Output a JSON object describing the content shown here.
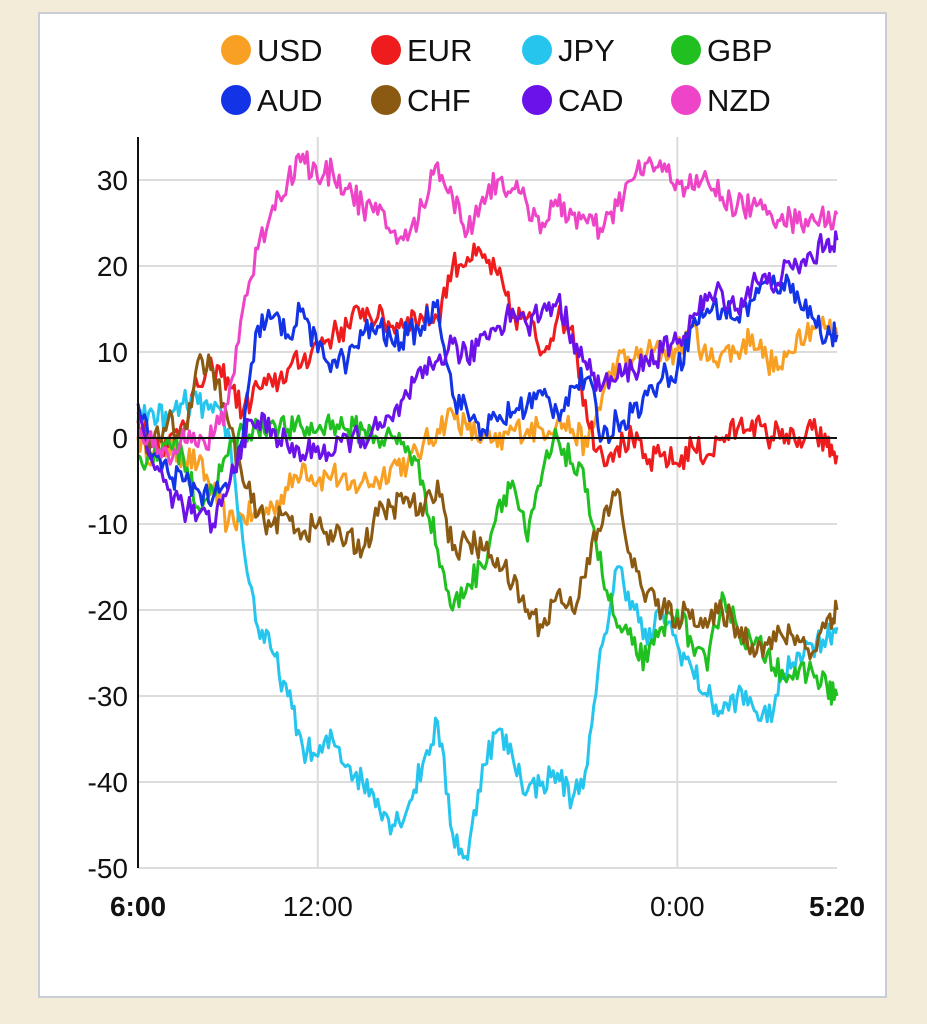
{
  "chart_data": {
    "type": "line",
    "title": "",
    "xlabel": "",
    "ylabel": "",
    "ylim": [
      -50,
      35
    ],
    "yticks": [
      30,
      20,
      10,
      0,
      -10,
      -20,
      -30,
      -40,
      -50
    ],
    "x_tick_labels": [
      {
        "label": "6:00",
        "t": 0,
        "bold": true
      },
      {
        "label": "12:00",
        "t": 6,
        "bold": false
      },
      {
        "label": "0:00",
        "t": 18,
        "bold": false
      },
      {
        "label": "5:20",
        "t": 23.33,
        "bold": true
      }
    ],
    "xlim": [
      0,
      23.33
    ],
    "grid": true,
    "legend_position": "top",
    "series": [
      {
        "name": "USD",
        "color": "#f7a024",
        "x": [
          0,
          0.5,
          1,
          1.5,
          2,
          2.5,
          3,
          3.5,
          4,
          4.5,
          5,
          5.5,
          6,
          6.5,
          7,
          7.5,
          8,
          8.5,
          9,
          9.5,
          10,
          10.5,
          11,
          11.5,
          12,
          12.5,
          13,
          13.5,
          14,
          14.5,
          15,
          15.5,
          16,
          16.5,
          17,
          17.5,
          18,
          18.5,
          19,
          19.5,
          20,
          20.5,
          21,
          21.5,
          22,
          22.5,
          23,
          23.33
        ],
        "y": [
          0,
          -2,
          -1,
          -2,
          -3,
          -6,
          -10,
          -9,
          -9,
          -8,
          -6,
          -3,
          -5,
          -4,
          -6,
          -5,
          -5,
          -3,
          -3,
          -1,
          1,
          3,
          1,
          0,
          -1,
          1,
          1,
          1,
          2,
          1,
          -1,
          5,
          9,
          9,
          10,
          10,
          10,
          13,
          9,
          10,
          10,
          12,
          9,
          8,
          12,
          13,
          13,
          12
        ]
      },
      {
        "name": "EUR",
        "color": "#ee1c1c",
        "x": [
          0,
          0.5,
          1,
          1.5,
          2,
          2.5,
          3,
          3.5,
          4,
          4.5,
          5,
          5.5,
          6,
          6.5,
          7,
          7.5,
          8,
          8.5,
          9,
          9.5,
          10,
          10.5,
          11,
          11.5,
          12,
          12.5,
          13,
          13.5,
          14,
          14.5,
          15,
          15.5,
          16,
          16.5,
          17,
          17.5,
          18,
          18.5,
          19,
          19.5,
          20,
          20.5,
          21,
          21.5,
          22,
          22.5,
          23,
          23.33
        ],
        "y": [
          2,
          0,
          -1,
          2,
          6,
          8,
          7,
          3,
          6,
          6,
          8,
          9,
          11,
          12,
          13,
          15,
          14,
          13,
          14,
          14,
          14,
          20,
          21,
          21,
          19,
          14,
          14,
          10,
          14,
          13,
          2,
          -2,
          -1,
          0,
          -3,
          -2,
          -3,
          -1,
          -2,
          0,
          1,
          2,
          0,
          1,
          -1,
          1,
          -1,
          -2
        ]
      },
      {
        "name": "JPY",
        "color": "#25c5ee",
        "x": [
          0,
          0.5,
          1,
          1.5,
          2,
          2.5,
          3,
          3.5,
          4,
          4.5,
          5,
          5.5,
          6,
          6.5,
          7,
          7.5,
          8,
          8.5,
          9,
          9.5,
          10,
          10.5,
          11,
          11.5,
          12,
          12.5,
          13,
          13.5,
          14,
          14.5,
          15,
          15.5,
          16,
          16.5,
          17,
          17.5,
          18,
          18.5,
          19,
          19.5,
          20,
          20.5,
          21,
          21.5,
          22,
          22.5,
          23,
          23.33
        ],
        "y": [
          2,
          3,
          2,
          4,
          4,
          3,
          1,
          -12,
          -22,
          -25,
          -30,
          -36,
          -37,
          -35,
          -38,
          -40,
          -42,
          -45,
          -43,
          -38,
          -33,
          -46,
          -49,
          -38,
          -34,
          -37,
          -41,
          -40,
          -39,
          -42,
          -38,
          -24,
          -15,
          -19,
          -24,
          -20,
          -24,
          -27,
          -30,
          -32,
          -30,
          -31,
          -33,
          -28,
          -25,
          -24,
          -23,
          -22
        ]
      },
      {
        "name": "GBP",
        "color": "#20c020",
        "x": [
          0,
          0.5,
          1,
          1.5,
          2,
          2.5,
          3,
          3.5,
          4,
          4.5,
          5,
          5.5,
          6,
          6.5,
          7,
          7.5,
          8,
          8.5,
          9,
          9.5,
          10,
          10.5,
          11,
          11.5,
          12,
          12.5,
          13,
          13.5,
          14,
          14.5,
          15,
          15.5,
          16,
          16.5,
          17,
          17.5,
          18,
          18.5,
          19,
          19.5,
          20,
          20.5,
          21,
          21.5,
          22,
          22.5,
          23,
          23.33
        ],
        "y": [
          -2,
          -3,
          0,
          -2,
          -8,
          -6,
          -2,
          1,
          1,
          2,
          1,
          1,
          1,
          2,
          1,
          1,
          0,
          0,
          -1,
          -5,
          -13,
          -20,
          -17,
          -15,
          -8,
          -5,
          -12,
          -4,
          0,
          -3,
          -6,
          -16,
          -22,
          -24,
          -26,
          -22,
          -20,
          -24,
          -27,
          -18,
          -22,
          -24,
          -25,
          -27,
          -28,
          -27,
          -29,
          -30
        ]
      },
      {
        "name": "AUD",
        "color": "#1233e6",
        "x": [
          0,
          0.5,
          1,
          1.5,
          2,
          2.5,
          3,
          3.5,
          4,
          4.5,
          5,
          5.5,
          6,
          6.5,
          7,
          7.5,
          8,
          8.5,
          9,
          9.5,
          10,
          10.5,
          11,
          11.5,
          12,
          12.5,
          13,
          13.5,
          14,
          14.5,
          15,
          15.5,
          16,
          16.5,
          17,
          17.5,
          18,
          18.5,
          19,
          19.5,
          20,
          20.5,
          21,
          21.5,
          22,
          22.5,
          23,
          23.33
        ],
        "y": [
          4,
          -2,
          -4,
          -5,
          -6,
          -7,
          -6,
          0,
          13,
          14,
          12,
          15,
          10,
          9,
          9,
          12,
          13,
          11,
          12,
          13,
          16,
          5,
          3,
          1,
          2,
          3,
          4,
          5,
          3,
          6,
          7,
          0,
          2,
          3,
          5,
          7,
          8,
          13,
          15,
          15,
          14,
          16,
          18,
          18,
          17,
          14,
          12,
          12
        ]
      },
      {
        "name": "CHF",
        "color": "#8b5a12",
        "x": [
          0,
          0.5,
          1,
          1.5,
          2,
          2.5,
          3,
          3.5,
          4,
          4.5,
          5,
          5.5,
          6,
          6.5,
          7,
          7.5,
          8,
          8.5,
          9,
          9.5,
          10,
          10.5,
          11,
          11.5,
          12,
          12.5,
          13,
          13.5,
          14,
          14.5,
          15,
          15.5,
          16,
          16.5,
          17,
          17.5,
          18,
          18.5,
          19,
          19.5,
          20,
          20.5,
          21,
          21.5,
          22,
          22.5,
          23,
          23.33
        ],
        "y": [
          0,
          -1,
          2,
          0,
          9,
          8,
          2,
          -5,
          -9,
          -10,
          -9,
          -11,
          -10,
          -12,
          -11,
          -13,
          -9,
          -8,
          -7,
          -9,
          -5,
          -13,
          -12,
          -13,
          -14,
          -17,
          -20,
          -22,
          -18,
          -20,
          -14,
          -10,
          -6,
          -15,
          -18,
          -20,
          -21,
          -20,
          -22,
          -20,
          -22,
          -24,
          -24,
          -23,
          -23,
          -25,
          -21,
          -20
        ]
      },
      {
        "name": "CAD",
        "color": "#6b12ea",
        "x": [
          0,
          0.5,
          1,
          1.5,
          2,
          2.5,
          3,
          3.5,
          4,
          4.5,
          5,
          5.5,
          6,
          6.5,
          7,
          7.5,
          8,
          8.5,
          9,
          9.5,
          10,
          10.5,
          11,
          11.5,
          12,
          12.5,
          13,
          13.5,
          14,
          14.5,
          15,
          15.5,
          16,
          16.5,
          17,
          17.5,
          18,
          18.5,
          19,
          19.5,
          20,
          20.5,
          21,
          21.5,
          22,
          22.5,
          23,
          23.33
        ],
        "y": [
          3,
          -3,
          -6,
          -8,
          -9,
          -10,
          -6,
          0,
          2,
          1,
          -1,
          -2,
          -1,
          -2,
          0,
          0,
          1,
          2,
          5,
          7,
          9,
          11,
          9,
          12,
          13,
          15,
          13,
          15,
          16,
          12,
          8,
          6,
          7,
          8,
          9,
          10,
          11,
          14,
          16,
          17,
          15,
          18,
          18,
          19,
          20,
          21,
          23,
          23
        ]
      },
      {
        "name": "NZD",
        "color": "#ee45c8",
        "x": [
          0,
          0.5,
          1,
          1.5,
          2,
          2.5,
          3,
          3.5,
          4,
          4.5,
          5,
          5.5,
          6,
          6.5,
          7,
          7.5,
          8,
          8.5,
          9,
          9.5,
          10,
          10.5,
          11,
          11.5,
          12,
          12.5,
          13,
          13.5,
          14,
          14.5,
          15,
          15.5,
          16,
          16.5,
          17,
          17.5,
          18,
          18.5,
          19,
          19.5,
          20,
          20.5,
          21,
          21.5,
          22,
          22.5,
          23,
          23.33
        ],
        "y": [
          0,
          -1,
          -2,
          1,
          -1,
          0,
          4,
          15,
          22,
          27,
          30,
          33,
          30,
          31,
          29,
          27,
          26,
          24,
          23,
          27,
          32,
          28,
          24,
          28,
          30,
          29,
          27,
          25,
          27,
          26,
          25,
          24,
          27,
          30,
          32,
          31,
          30,
          29,
          30,
          28,
          27,
          27,
          26,
          26,
          25,
          26,
          25,
          26
        ]
      }
    ]
  }
}
